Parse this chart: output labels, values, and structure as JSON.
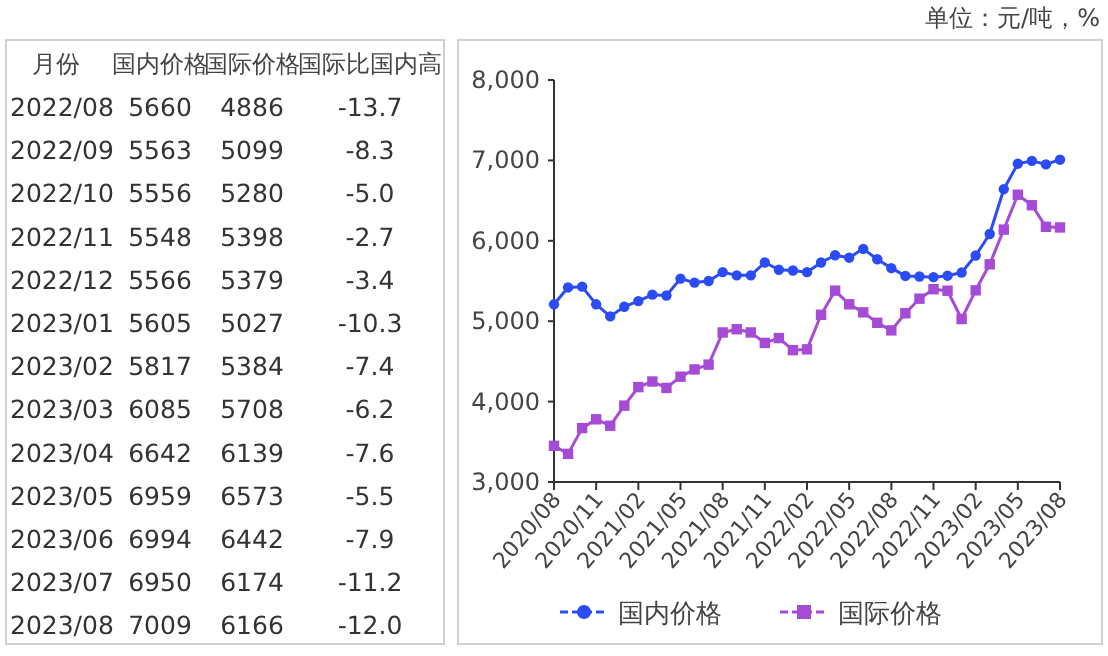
{
  "chart_data": [
    {
      "type": "other",
      "ylabel": "月份",
      "categories": [
        "国内价格",
        "国际价格",
        "国际比国内高"
      ],
      "y_categories": [
        "2022/08",
        "2022/09",
        "2022/10",
        "2022/11",
        "2022/12",
        "2023/01",
        "2023/02",
        "2023/03",
        "2023/04",
        "2023/05",
        "2023/06",
        "2023/07",
        "2023/08"
      ],
      "cell_labels": [
        [
          "5660",
          "4886",
          "-13.7"
        ],
        [
          "5563",
          "5099",
          "-8.3"
        ],
        [
          "5556",
          "5280",
          "-5.0"
        ],
        [
          "5548",
          "5398",
          "-2.7"
        ],
        [
          "5566",
          "5379",
          "-3.4"
        ],
        [
          "5605",
          "5027",
          "-10.3"
        ],
        [
          "5817",
          "5384",
          "-7.4"
        ],
        [
          "6085",
          "5708",
          "-6.2"
        ],
        [
          "6642",
          "6139",
          "-7.6"
        ],
        [
          "6959",
          "6573",
          "-5.5"
        ],
        [
          "6994",
          "6442",
          "-7.9"
        ],
        [
          "6950",
          "6174",
          "-11.2"
        ],
        [
          "7009",
          "6166",
          "-12.0"
        ]
      ]
    },
    {
      "type": "line",
      "annotations": [
        "单位：元/吨，%"
      ],
      "categories": [
        "2020/08",
        null,
        null,
        "2020/11",
        null,
        null,
        "2021/02",
        null,
        null,
        "2021/05",
        null,
        null,
        "2021/08",
        null,
        null,
        "2021/11",
        null,
        null,
        "2022/02",
        null,
        null,
        "2022/05",
        null,
        null,
        "2022/08",
        null,
        null,
        "2022/11",
        null,
        null,
        "2023/02",
        null,
        null,
        "2023/05",
        null,
        null,
        "2023/08"
      ],
      "ylim": [
        3000,
        8000
      ],
      "yticks": [
        {
          "value": 3000,
          "label": "3,000"
        },
        {
          "value": 4000,
          "label": "4,000"
        },
        {
          "value": 5000,
          "label": "5,000"
        },
        {
          "value": 6000,
          "label": "6,000"
        },
        {
          "value": 7000,
          "label": "7,000"
        },
        {
          "value": 8000,
          "label": "8,000"
        }
      ],
      "legend": "bottom",
      "grid": false,
      "series": [
        {
          "name": "国内价格",
          "color": "#2b4cf5",
          "marker": "circle",
          "values": [
            5210,
            5420,
            5430,
            5210,
            5060,
            5180,
            5250,
            5330,
            5320,
            5530,
            5480,
            5500,
            5610,
            5570,
            5570,
            5730,
            5640,
            5630,
            5610,
            5730,
            5820,
            5790,
            5900,
            5770,
            5660,
            5563,
            5556,
            5548,
            5566,
            5605,
            5817,
            6085,
            6642,
            6959,
            6994,
            6950,
            7009
          ]
        },
        {
          "name": "国际价格",
          "color": "#a64bd6",
          "marker": "square",
          "values": [
            3450,
            3350,
            3670,
            3780,
            3700,
            3950,
            4180,
            4250,
            4170,
            4310,
            4400,
            4460,
            4860,
            4900,
            4860,
            4730,
            4790,
            4640,
            4650,
            5080,
            5380,
            5210,
            5110,
            4980,
            4886,
            5099,
            5280,
            5398,
            5379,
            5027,
            5384,
            5708,
            6139,
            6573,
            6442,
            6174,
            6166
          ]
        }
      ]
    }
  ]
}
